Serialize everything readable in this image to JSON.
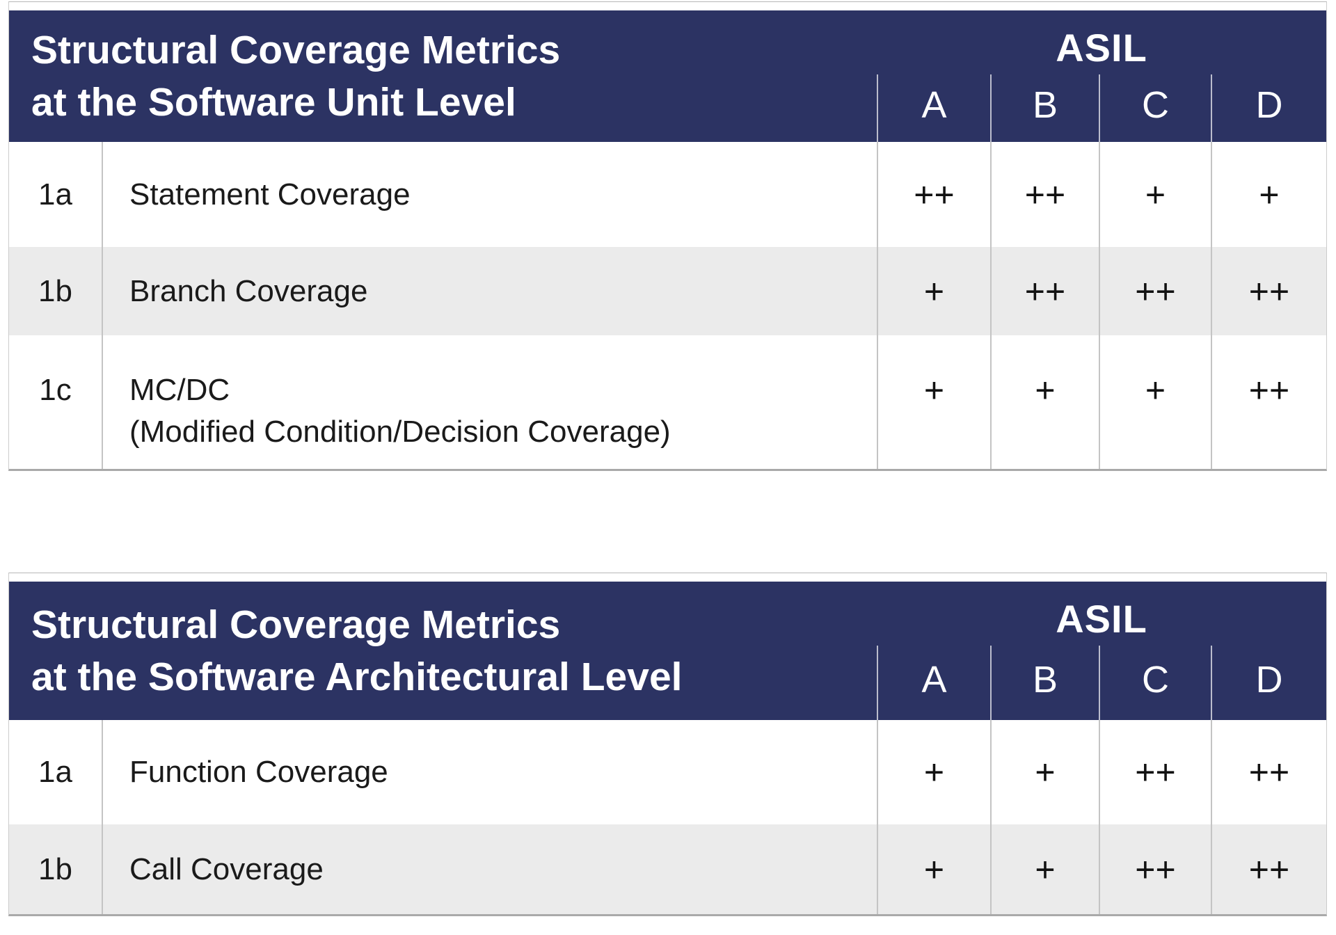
{
  "colors": {
    "header_bg": "#2C3363",
    "header_text": "#FFFFFF",
    "row_white": "#FFFFFF",
    "row_alt": "#EBEBEB",
    "grid_line": "#C4C4C4",
    "header_grid_line": "rgba(255,255,255,0.68)",
    "body_text": "#1A1A1A"
  },
  "tables": [
    {
      "title_line1": "Structural Coverage Metrics",
      "title_line2": "at the Software Unit Level",
      "group_header": "ASIL",
      "columns": [
        "A",
        "B",
        "C",
        "D"
      ],
      "rows": [
        {
          "id": "1a",
          "name": "Statement Coverage",
          "ratings": [
            "++",
            "++",
            "+",
            "+"
          ]
        },
        {
          "id": "1b",
          "name": "Branch Coverage",
          "ratings": [
            "+",
            "++",
            "++",
            "++"
          ]
        },
        {
          "id": "1c",
          "name": "MC/DC",
          "name_line2": "(Modified Condition/Decision Coverage)",
          "ratings": [
            "+",
            "+",
            "+",
            "++"
          ]
        }
      ]
    },
    {
      "title_line1": "Structural Coverage Metrics",
      "title_line2": "at the Software Architectural Level",
      "group_header": "ASIL",
      "columns": [
        "A",
        "B",
        "C",
        "D"
      ],
      "rows": [
        {
          "id": "1a",
          "name": "Function Coverage",
          "ratings": [
            "+",
            "+",
            "++",
            "++"
          ]
        },
        {
          "id": "1b",
          "name": "Call Coverage",
          "ratings": [
            "+",
            "+",
            "++",
            "++"
          ]
        }
      ]
    }
  ]
}
